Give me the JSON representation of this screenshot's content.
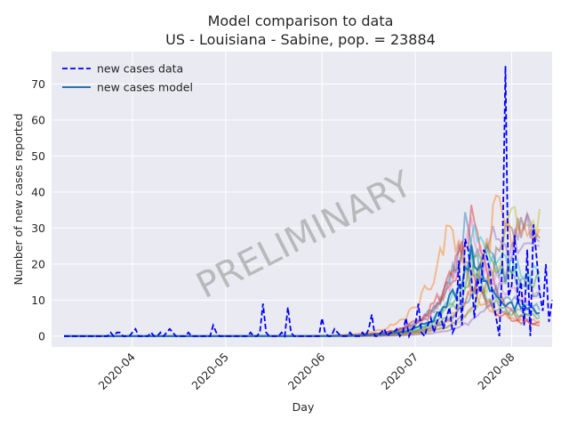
{
  "chart_data": {
    "type": "line",
    "title_line1": "Model comparison to data",
    "title_line2": "US - Louisiana - Sabine, pop. = 23884",
    "xlabel": "Day",
    "ylabel": "Number of new cases reported",
    "watermark": "PRELIMINARY",
    "xlim": [
      "2020-03-06",
      "2020-08-14"
    ],
    "ylim": [
      -3,
      79
    ],
    "yticks": [
      0,
      10,
      20,
      30,
      40,
      50,
      60,
      70
    ],
    "xticks": [
      {
        "date": "2020-04-01",
        "label": "2020-04"
      },
      {
        "date": "2020-05-01",
        "label": "2020-05"
      },
      {
        "date": "2020-06-01",
        "label": "2020-06"
      },
      {
        "date": "2020-07-01",
        "label": "2020-07"
      },
      {
        "date": "2020-08-01",
        "label": "2020-08"
      }
    ],
    "grid": true,
    "legend": {
      "placement": "top-left",
      "entries": [
        {
          "name": "new cases data",
          "style": "dashed",
          "color": "#0000ff"
        },
        {
          "name": "new cases model",
          "style": "solid",
          "color": "#1f77b4"
        }
      ]
    },
    "data_series": {
      "name": "new cases data",
      "color": "#0000ff",
      "start_date": "2020-03-10",
      "values": [
        0,
        0,
        0,
        0,
        0,
        0,
        0,
        0,
        0,
        0,
        0,
        0,
        0,
        0,
        0,
        1,
        0,
        1,
        1,
        0,
        0,
        0,
        1,
        2,
        0,
        0,
        0,
        0,
        1,
        0,
        0,
        1,
        0,
        1,
        2,
        1,
        0,
        0,
        0,
        0,
        1,
        0,
        0,
        0,
        0,
        0,
        0,
        0,
        3,
        1,
        0,
        0,
        0,
        0,
        0,
        0,
        0,
        0,
        0,
        0,
        1,
        0,
        0,
        1,
        9,
        1,
        0,
        0,
        0,
        0,
        1,
        0,
        8,
        1,
        0,
        0,
        0,
        0,
        0,
        0,
        0,
        0,
        0,
        5,
        1,
        0,
        0,
        2,
        1,
        0,
        0,
        0,
        1,
        0,
        0,
        0,
        1,
        0,
        2,
        6,
        0,
        0,
        1,
        2,
        0,
        1,
        1,
        2,
        0,
        1,
        5,
        0,
        2,
        3,
        9,
        1,
        0,
        3,
        5,
        1,
        4,
        7,
        2,
        5,
        8,
        1,
        3,
        21,
        3,
        27,
        24,
        17,
        5,
        16,
        12,
        24,
        22,
        18,
        10,
        5,
        0,
        20,
        75,
        11,
        14,
        28,
        9,
        15,
        3,
        24,
        0,
        31,
        22,
        12,
        7,
        20,
        4,
        10
      ]
    },
    "model_series_colors": [
      "#1f77b4",
      "#ff7f0e",
      "#2ca02c",
      "#d62728",
      "#9467bd",
      "#8c564b",
      "#e377c2",
      "#7f7f7f",
      "#bcbd22",
      "#17becf"
    ],
    "model_series_peaks": [
      {
        "peak": 30,
        "peak_date": "2020-07-17",
        "tail": 8
      },
      {
        "peak": 35,
        "peak_date": "2020-07-12",
        "tail": 4
      },
      {
        "peak": 25,
        "peak_date": "2020-07-22",
        "tail": 15
      },
      {
        "peak": 38,
        "peak_date": "2020-07-20",
        "tail": 2
      },
      {
        "peak": 28,
        "peak_date": "2020-07-25",
        "tail": 22
      },
      {
        "peak": 26,
        "peak_date": "2020-07-28",
        "tail": 30
      },
      {
        "peak": 33,
        "peak_date": "2020-07-18",
        "tail": 10
      },
      {
        "peak": 22,
        "peak_date": "2020-07-15",
        "tail": 6
      },
      {
        "peak": 30,
        "peak_date": "2020-07-30",
        "tail": 35
      },
      {
        "peak": 27,
        "peak_date": "2020-07-20",
        "tail": 18
      },
      {
        "peak": 24,
        "peak_date": "2020-07-24",
        "tail": 12
      },
      {
        "peak": 36,
        "peak_date": "2020-07-27",
        "tail": 25
      },
      {
        "peak": 20,
        "peak_date": "2020-07-19",
        "tail": 5
      },
      {
        "peak": 29,
        "peak_date": "2020-07-16",
        "tail": 3
      },
      {
        "peak": 31,
        "peak_date": "2020-08-03",
        "tail": 28
      }
    ],
    "model_mean": {
      "name": "new cases model",
      "color": "#1f77b4",
      "peak": 25,
      "peak_date": "2020-07-19",
      "tail": 7
    }
  }
}
